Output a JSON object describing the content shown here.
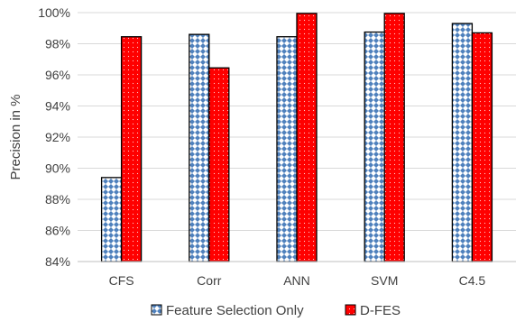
{
  "chart_data": {
    "type": "bar",
    "title": "",
    "xlabel": "",
    "ylabel": "Precision in %",
    "ylim": [
      84,
      100
    ],
    "ytick_step": 2,
    "ytick_suffix": "%",
    "grid": true,
    "legend_position": "bottom",
    "categories": [
      "CFS",
      "Corr",
      "ANN",
      "SVM",
      "C4.5"
    ],
    "series": [
      {
        "name": "Feature Selection Only",
        "values": [
          89.4,
          98.6,
          98.45,
          98.75,
          99.3
        ],
        "color": "#4f81bd",
        "pattern": "blue-diamond-checker"
      },
      {
        "name": "D-FES",
        "values": [
          98.45,
          96.45,
          99.95,
          99.95,
          98.7
        ],
        "color": "#ff0000",
        "pattern": "red-dotted"
      }
    ]
  }
}
